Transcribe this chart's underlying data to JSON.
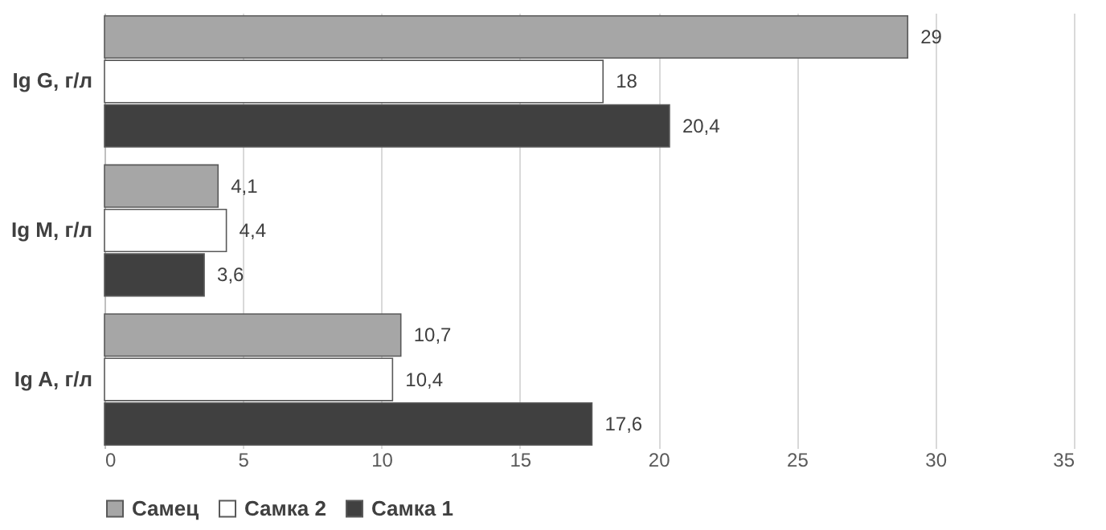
{
  "chart_data": {
    "type": "bar",
    "orientation": "horizontal",
    "categories": [
      "Ig G, г/л",
      "Ig M, г/л",
      "Ig A, г/л"
    ],
    "series": [
      {
        "name": "Самец",
        "color": "#a6a6a6",
        "values": [
          29,
          4.1,
          10.7
        ],
        "value_labels": [
          "29",
          "4,1",
          "10,7"
        ]
      },
      {
        "name": "Самка 2",
        "color": "#ffffff",
        "values": [
          18,
          4.4,
          10.4
        ],
        "value_labels": [
          "18",
          "4,4",
          "10,4"
        ]
      },
      {
        "name": "Самка 1",
        "color": "#404040",
        "values": [
          20.4,
          3.6,
          17.6
        ],
        "value_labels": [
          "20,4",
          "3,6",
          "17,6"
        ]
      }
    ],
    "xlim": [
      0,
      35
    ],
    "xticks": [
      0,
      5,
      10,
      15,
      20,
      25,
      30,
      35
    ],
    "grid": "x",
    "legend": "bottom"
  }
}
